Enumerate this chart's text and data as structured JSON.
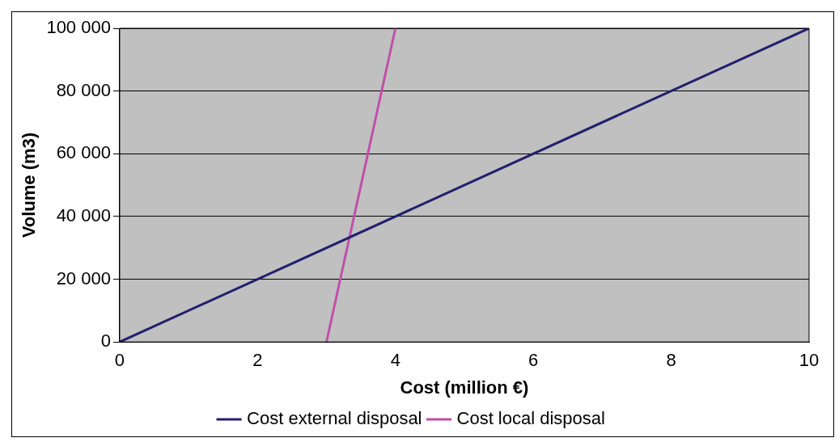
{
  "chart_data": {
    "type": "line",
    "xlabel": "Cost (million €)",
    "ylabel": "Volume (m3)",
    "series": [
      {
        "name": "Cost external disposal",
        "color": "#23206e",
        "x": [
          0,
          10
        ],
        "values": [
          0,
          100000
        ]
      },
      {
        "name": "Cost local disposal",
        "color": "#c050a8",
        "x": [
          3,
          4
        ],
        "values": [
          0,
          100000
        ]
      }
    ],
    "xlim": [
      0,
      10
    ],
    "xticks": [
      0,
      2,
      4,
      6,
      8,
      10
    ],
    "ylim": [
      0,
      100000
    ],
    "yticks": [
      {
        "value": 0,
        "label": "0"
      },
      {
        "value": 20000,
        "label": "20 000"
      },
      {
        "value": 40000,
        "label": "40 000"
      },
      {
        "value": 60000,
        "label": "60 000"
      },
      {
        "value": 80000,
        "label": "80 000"
      },
      {
        "value": 100000,
        "label": "100 000"
      }
    ],
    "grid": "y",
    "legend": "bottom",
    "marker": "none",
    "line_style": "solid"
  }
}
